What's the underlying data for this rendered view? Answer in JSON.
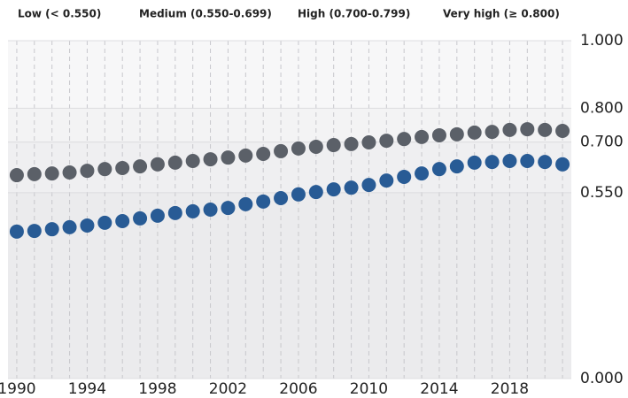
{
  "chart_data": {
    "type": "dot",
    "bands": [
      {
        "label": "Low (< 0.550)",
        "from": 0,
        "to": 0.55,
        "color": "#ebebed"
      },
      {
        "label": "Medium (0.550-0.699)",
        "from": 0.55,
        "to": 0.7,
        "color": "#efeff1"
      },
      {
        "label": "High (0.700-0.799)",
        "from": 0.7,
        "to": 0.8,
        "color": "#f3f3f4"
      },
      {
        "label": "Very high (≥ 0.800)",
        "from": 0.8,
        "to": 1,
        "color": "#f7f7f8"
      }
    ],
    "x": [
      1990,
      1991,
      1992,
      1993,
      1994,
      1995,
      1996,
      1997,
      1998,
      1999,
      2000,
      2001,
      2002,
      2003,
      2004,
      2005,
      2006,
      2007,
      2008,
      2009,
      2010,
      2011,
      2012,
      2013,
      2014,
      2015,
      2016,
      2017,
      2018,
      2019,
      2020,
      2021
    ],
    "series": [
      {
        "color": "#5b6068",
        "values": [
          0.602,
          0.605,
          0.607,
          0.61,
          0.615,
          0.62,
          0.623,
          0.628,
          0.634,
          0.639,
          0.644,
          0.649,
          0.654,
          0.66,
          0.665,
          0.673,
          0.681,
          0.686,
          0.691,
          0.694,
          0.699,
          0.704,
          0.709,
          0.715,
          0.72,
          0.723,
          0.728,
          0.73,
          0.736,
          0.738,
          0.736,
          0.733
        ]
      },
      {
        "color": "#285b95",
        "values": [
          0.435,
          0.437,
          0.442,
          0.448,
          0.453,
          0.461,
          0.466,
          0.474,
          0.482,
          0.49,
          0.495,
          0.5,
          0.505,
          0.516,
          0.524,
          0.534,
          0.545,
          0.552,
          0.56,
          0.565,
          0.573,
          0.586,
          0.597,
          0.607,
          0.62,
          0.628,
          0.639,
          0.641,
          0.644,
          0.644,
          0.641,
          0.634
        ]
      }
    ],
    "xlim": [
      1989.5,
      2021.5
    ],
    "xticks": [
      1990,
      1994,
      1998,
      2002,
      2006,
      2010,
      2014,
      2018
    ],
    "ylim": [
      0,
      1
    ],
    "yticks": [
      {
        "value": 0,
        "label": "0.000"
      },
      {
        "value": 0.55,
        "label": "0.550"
      },
      {
        "value": 0.7,
        "label": "0.700"
      },
      {
        "value": 0.8,
        "label": "0.800"
      },
      {
        "value": 1,
        "label": "1.000"
      }
    ],
    "grid": true
  }
}
